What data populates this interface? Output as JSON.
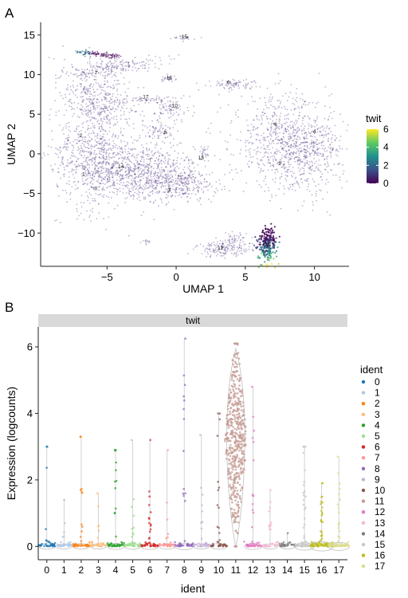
{
  "panels": {
    "a": {
      "label": "A"
    },
    "b": {
      "label": "B"
    }
  },
  "chart_data": [
    {
      "type": "scatter",
      "panel": "A",
      "xlabel": "UMAP 1",
      "ylabel": "UMAP 2",
      "xticks": [
        -5,
        0,
        5,
        10
      ],
      "yticks": [
        -10,
        -5,
        0,
        5,
        10,
        15
      ],
      "xlim": [
        -9.8,
        12.5
      ],
      "ylim": [
        -14.2,
        16.6
      ],
      "colorbar": {
        "title": "twit",
        "ticks": [
          0,
          2,
          4,
          6
        ],
        "range": [
          0,
          6
        ],
        "palette": "viridis"
      },
      "cluster_labels": [
        {
          "id": "0",
          "x": -5.8,
          "y": -4.6
        },
        {
          "id": "1",
          "x": -6.7,
          "y": -2.8
        },
        {
          "id": "2",
          "x": -6.9,
          "y": 2.1
        },
        {
          "id": "3",
          "x": -0.5,
          "y": -4.8
        },
        {
          "id": "4",
          "x": 10.0,
          "y": 2.6
        },
        {
          "id": "5",
          "x": 3.8,
          "y": 8.8
        },
        {
          "id": "6",
          "x": 7.2,
          "y": 3.5
        },
        {
          "id": "7",
          "x": -5.8,
          "y": 10.0
        },
        {
          "id": "8",
          "x": -0.8,
          "y": 2.5
        },
        {
          "id": "9",
          "x": 7.5,
          "y": -1.4
        },
        {
          "id": "10",
          "x": -0.1,
          "y": 5.9
        },
        {
          "id": "11",
          "x": 6.6,
          "y": -11.6
        },
        {
          "id": "12",
          "x": 3.2,
          "y": -12.1
        },
        {
          "id": "13",
          "x": 1.8,
          "y": -0.7
        },
        {
          "id": "14",
          "x": -4.0,
          "y": -1.8
        },
        {
          "id": "15",
          "x": 0.6,
          "y": 14.6
        },
        {
          "id": "16",
          "x": -0.5,
          "y": 9.4
        },
        {
          "id": "17",
          "x": -2.2,
          "y": 7.0
        }
      ],
      "clusters": [
        {
          "cx": -3.0,
          "cy": -2.2,
          "sx": 2.3,
          "sy": 1.8,
          "n": 900,
          "rot": -0.3
        },
        {
          "cx": -6.1,
          "cy": 0.6,
          "sx": 1.3,
          "sy": 3.8,
          "n": 600,
          "rot": 0
        },
        {
          "cx": -5.6,
          "cy": 7.2,
          "sx": 1.2,
          "sy": 2.4,
          "n": 380,
          "rot": 0.4
        },
        {
          "cx": -4.2,
          "cy": 11.0,
          "sx": 1.6,
          "sy": 0.5,
          "n": 190,
          "rot": 0.2
        },
        {
          "cx": 0.2,
          "cy": -3.8,
          "sx": 1.4,
          "sy": 1.0,
          "n": 280,
          "rot": 0
        },
        {
          "cx": 8.0,
          "cy": 1.2,
          "sx": 2.0,
          "sy": 3.0,
          "n": 750,
          "rot": 0.15
        },
        {
          "cx": 9.6,
          "cy": 0.4,
          "sx": 1.3,
          "sy": 2.2,
          "n": 280,
          "rot": 0
        },
        {
          "cx": 4.0,
          "cy": 8.8,
          "sx": 1.0,
          "sy": 0.3,
          "n": 80,
          "rot": 0
        },
        {
          "cx": -0.3,
          "cy": 5.8,
          "sx": 0.6,
          "sy": 0.9,
          "n": 90,
          "rot": 0
        },
        {
          "cx": -1.2,
          "cy": 2.8,
          "sx": 0.5,
          "sy": 0.8,
          "n": 70,
          "rot": 0
        },
        {
          "cx": -2.0,
          "cy": 6.8,
          "sx": 0.5,
          "sy": 0.2,
          "n": 40,
          "rot": 0
        },
        {
          "cx": -0.6,
          "cy": 9.5,
          "sx": 0.3,
          "sy": 0.2,
          "n": 25,
          "rot": 0
        },
        {
          "cx": 0.6,
          "cy": 14.6,
          "sx": 0.4,
          "sy": 0.15,
          "n": 25,
          "rot": 0
        },
        {
          "cx": 2.0,
          "cy": 0.1,
          "sx": 0.15,
          "sy": 0.5,
          "n": 25,
          "rot": 0
        },
        {
          "cx": 3.5,
          "cy": -12.0,
          "sx": 1.0,
          "sy": 0.5,
          "n": 160,
          "rot": 0
        },
        {
          "cx": -2.1,
          "cy": -11.1,
          "sx": 0.2,
          "sy": 0.2,
          "n": 12,
          "rot": 0
        },
        {
          "cx": 4.3,
          "cy": -10.8,
          "sx": 0.4,
          "sy": 0.4,
          "n": 40,
          "rot": 0
        }
      ],
      "high_cluster": {
        "cx": 6.6,
        "cy": -11.4,
        "sx": 0.35,
        "sy": 1.0,
        "n": 260
      },
      "arm": {
        "x0": -7.3,
        "y0": 12.9,
        "x1": -4.2,
        "y1": 12.3
      }
    },
    {
      "type": "violin",
      "panel": "B",
      "facet_title": "twit",
      "xlabel": "ident",
      "ylabel": "Expression (logcounts)",
      "ylim": [
        -0.4,
        6.6
      ],
      "yticks": [
        0,
        2,
        4,
        6
      ],
      "legend_title": "ident",
      "categories": [
        "0",
        "1",
        "2",
        "3",
        "4",
        "5",
        "6",
        "7",
        "8",
        "9",
        "10",
        "11",
        "12",
        "13",
        "14",
        "15",
        "16",
        "17"
      ],
      "colors": [
        "#1f77b4",
        "#aec7e8",
        "#ff7f0e",
        "#ffbb78",
        "#2ca02c",
        "#98df8a",
        "#d62728",
        "#ff9896",
        "#9467bd",
        "#c5b0d5",
        "#8c564b",
        "#c49c94",
        "#e377c2",
        "#f7b6d2",
        "#7f7f7f",
        "#c7c7c7",
        "#bcbd22",
        "#dbdb8d"
      ],
      "max_values": [
        3.0,
        1.4,
        3.3,
        1.6,
        2.9,
        3.2,
        3.2,
        2.9,
        6.25,
        3.35,
        4.0,
        6.1,
        4.8,
        1.7,
        0.4,
        3.0,
        1.9,
        2.7
      ],
      "dense_fraction": [
        0.1,
        0.07,
        0.12,
        0.08,
        0.2,
        0.15,
        0.2,
        0.1,
        0.3,
        0.08,
        0.15,
        0.95,
        0.2,
        0.05,
        0.05,
        0.4,
        0.7,
        0.5
      ]
    }
  ]
}
